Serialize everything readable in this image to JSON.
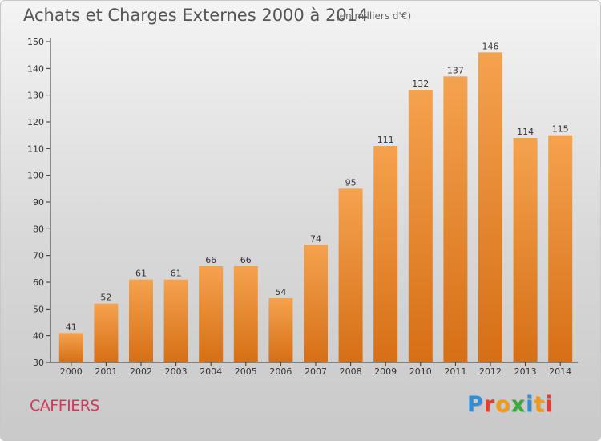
{
  "header": {
    "title": "Achats et Charges Externes 2000 à 2014",
    "unit": "(en milliers d'€)"
  },
  "footer": {
    "commune": "CAFFIERS",
    "logo": "Proxiti"
  },
  "colors": {
    "bar_light": "#f5a24e",
    "bar_dark": "#d66f16",
    "commune_text": "#d03a5a",
    "logo_letters": [
      "#2e8fd6",
      "#e63b2e",
      "#f29a1a",
      "#3aa83a",
      "#2e8fd6",
      "#f29a1a",
      "#e63b2e"
    ]
  },
  "chart_data": {
    "type": "bar",
    "title": "Achats et Charges Externes 2000 à 2014",
    "subtitle": "(en milliers d'€)",
    "categories": [
      "2000",
      "2001",
      "2002",
      "2003",
      "2004",
      "2005",
      "2006",
      "2007",
      "2008",
      "2009",
      "2010",
      "2011",
      "2012",
      "2013",
      "2014"
    ],
    "values": [
      41,
      52,
      61,
      61,
      66,
      66,
      54,
      74,
      95,
      111,
      132,
      137,
      146,
      114,
      115
    ],
    "ylim": [
      30,
      150
    ],
    "yticks": [
      30,
      40,
      50,
      60,
      70,
      80,
      90,
      100,
      110,
      120,
      130,
      140,
      150
    ],
    "grid": false,
    "legend": "none",
    "xlabel": "",
    "ylabel": ""
  }
}
